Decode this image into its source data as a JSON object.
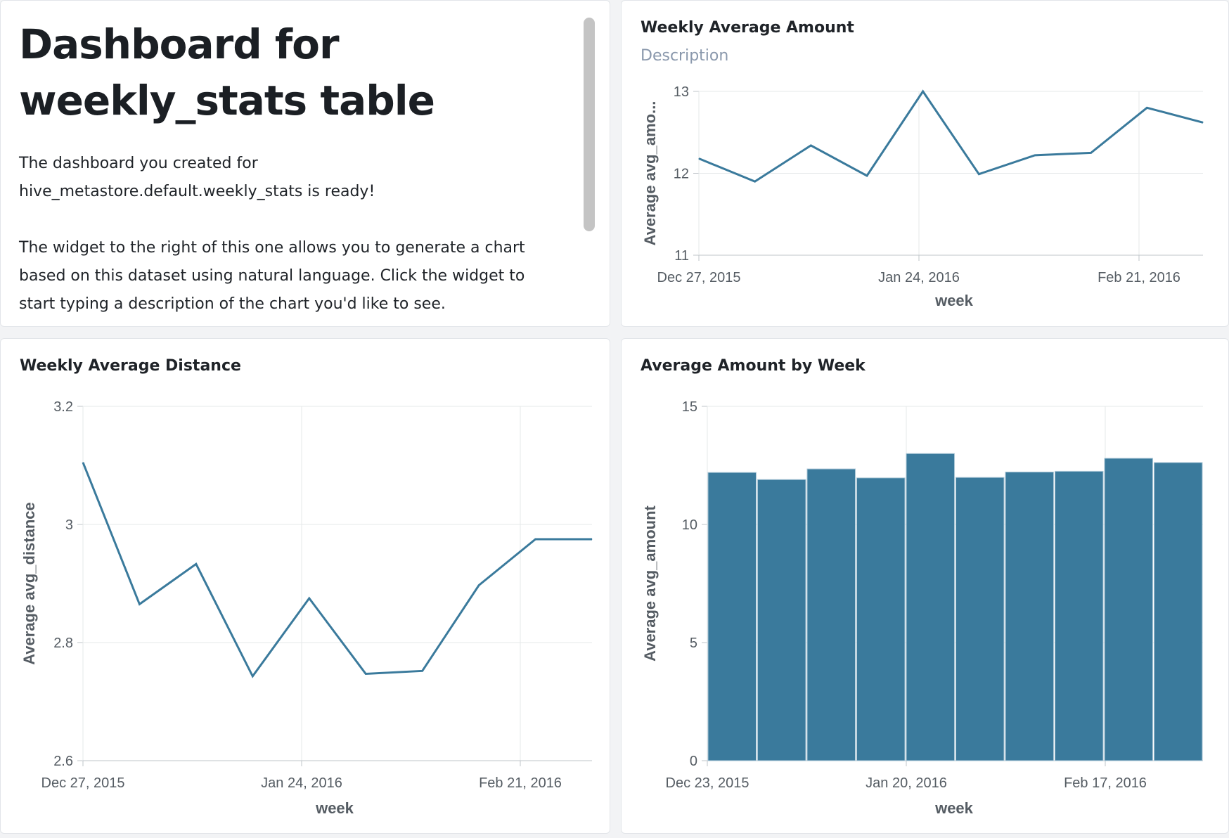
{
  "text_widget": {
    "title_line1": "Dashboard for",
    "title_line2": "weekly_stats table",
    "paragraph1": "The dashboard you created for\nhive_metastore.default.weekly_stats is ready!",
    "paragraph2": "The widget to the right of this one allows you to generate a chart\nbased on this dataset using natural language. Click the widget to\nstart typing a description of the chart you'd like to see."
  },
  "widgets": {
    "amount": {
      "title": "Weekly Average Amount",
      "description": "Description"
    },
    "distance": {
      "title": "Weekly Average Distance"
    },
    "bar": {
      "title": "Average Amount by Week"
    }
  },
  "colors": {
    "series": "#3a7a9c",
    "grid": "#e6e8ea",
    "axis": "#bfc4c9"
  },
  "chart_data": [
    {
      "type": "line",
      "title": "Weekly Average Amount",
      "xlabel": "week",
      "ylabel": "Average avg_amo...",
      "x": [
        "2015-12-27",
        "2016-01-03",
        "2016-01-10",
        "2016-01-17",
        "2016-01-24",
        "2016-01-31",
        "2016-02-07",
        "2016-02-14",
        "2016-02-21",
        "2016-02-28"
      ],
      "values": [
        12.18,
        11.9,
        12.34,
        11.97,
        13.0,
        11.99,
        12.22,
        12.25,
        12.8,
        12.62
      ],
      "ylim": [
        11,
        13
      ],
      "yticks": [
        11,
        12,
        13
      ],
      "xticks": [
        "Dec 27, 2015",
        "Jan 24, 2016",
        "Feb 21, 2016"
      ],
      "grid": true
    },
    {
      "type": "line",
      "title": "Weekly Average Distance",
      "xlabel": "week",
      "ylabel": "Average avg_distance",
      "x": [
        "2015-12-27",
        "2016-01-03",
        "2016-01-10",
        "2016-01-17",
        "2016-01-24",
        "2016-01-31",
        "2016-02-07",
        "2016-02-14",
        "2016-02-21",
        "2016-02-28"
      ],
      "values": [
        3.105,
        2.865,
        2.933,
        2.743,
        2.875,
        2.747,
        2.752,
        2.897,
        2.975,
        2.975
      ],
      "ylim": [
        2.6,
        3.2
      ],
      "yticks": [
        "2.6",
        "2.8",
        "3",
        "3.2"
      ],
      "xticks": [
        "Dec 27, 2015",
        "Jan 24, 2016",
        "Feb 21, 2016"
      ],
      "grid": true
    },
    {
      "type": "bar",
      "title": "Average Amount by Week",
      "xlabel": "week",
      "ylabel": "Average avg_amount",
      "x": [
        "2015-12-27",
        "2016-01-03",
        "2016-01-10",
        "2016-01-17",
        "2016-01-24",
        "2016-01-31",
        "2016-02-07",
        "2016-02-14",
        "2016-02-21",
        "2016-02-28"
      ],
      "values": [
        12.2,
        11.9,
        12.35,
        11.97,
        13.0,
        11.99,
        12.22,
        12.25,
        12.8,
        12.62
      ],
      "ylim": [
        0,
        15
      ],
      "yticks": [
        0,
        5,
        10,
        15
      ],
      "xticks": [
        "Dec 23, 2015",
        "Jan 20, 2016",
        "Feb 17, 2016"
      ],
      "grid": true
    }
  ]
}
